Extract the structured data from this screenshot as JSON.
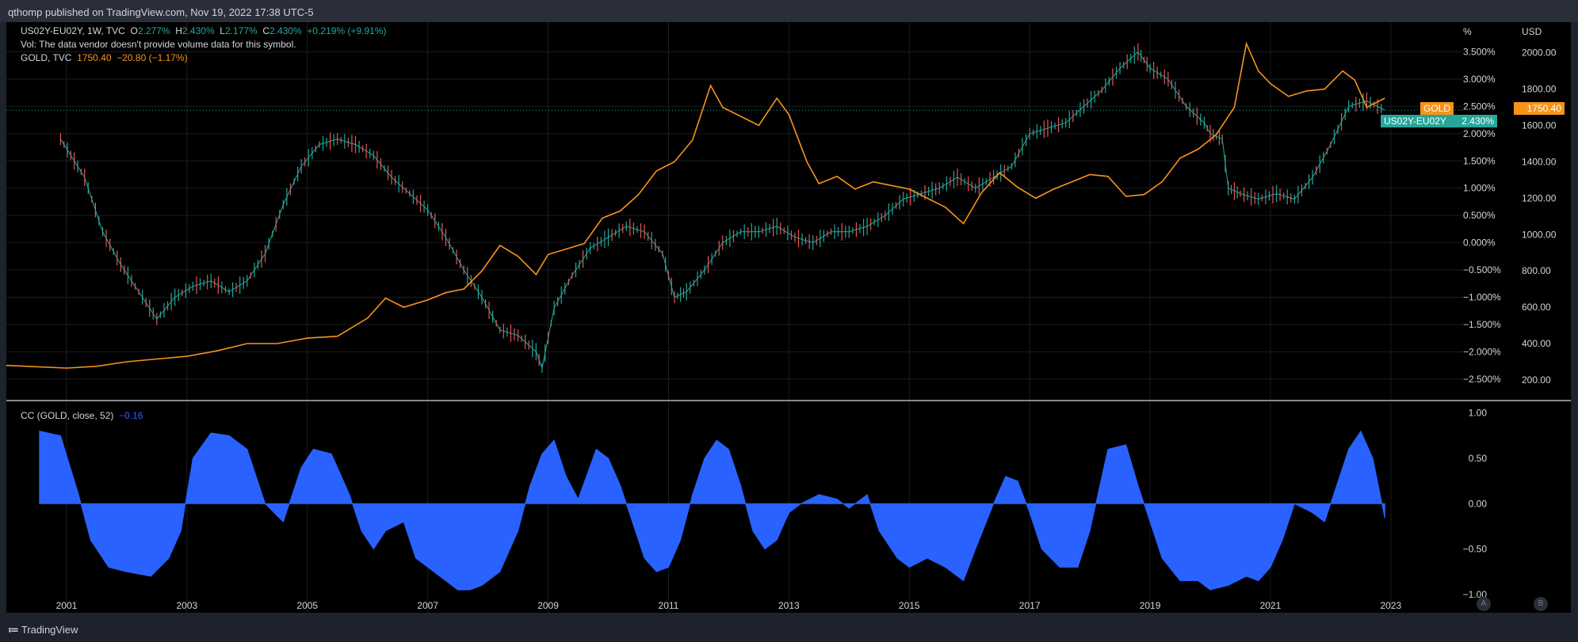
{
  "header": {
    "published_text": "qthomp published on TradingView.com, Nov 19, 2022 17:38 UTC-5"
  },
  "legend": {
    "symbol": "US02Y-EU02Y, 1W, TVC",
    "open_label": "O",
    "open_value": "2.277%",
    "high_label": "H",
    "high_value": "2.430%",
    "low_label": "L",
    "low_value": "2.177%",
    "close_label": "C",
    "close_value": "2.430%",
    "change": "+0.219% (+9.91%)",
    "vol_text": "Vol: The data vendor doesn't provide volume data for this symbol.",
    "gold_symbol": "GOLD, TVC",
    "gold_price": "1750.40",
    "gold_change": "−20.80 (−1.17%)"
  },
  "indicator": {
    "label": "CC (GOLD, close, 52)",
    "value": "−0.16"
  },
  "axes": {
    "left_unit": "%",
    "right_unit": "USD",
    "pct_ticks": [
      "3.500%",
      "3.000%",
      "2.500%",
      "2.000%",
      "1.500%",
      "1.000%",
      "0.500%",
      "0.000%",
      "−0.500%",
      "−1.000%",
      "−1.500%",
      "−2.000%",
      "−2.500%"
    ],
    "usd_ticks": [
      "2000.00",
      "1800.00",
      "1600.00",
      "1400.00",
      "1200.00",
      "1000.00",
      "800.00",
      "600.00",
      "400.00",
      "200.00"
    ],
    "cc_ticks": [
      "1.00",
      "0.50",
      "0.00",
      "−0.50",
      "−1.00"
    ],
    "x_ticks": [
      "2001",
      "2003",
      "2005",
      "2007",
      "2009",
      "2011",
      "2013",
      "2015",
      "2017",
      "2019",
      "2021",
      "2023"
    ]
  },
  "badges": {
    "gold_name": "GOLD",
    "gold_price": "1750.40",
    "spread_name": "US02Y-EU02Y",
    "spread_value": "2.430%"
  },
  "footer": {
    "logo_text": "TradingView",
    "btn_a": "A",
    "btn_b": "B"
  },
  "colors": {
    "gold": "#f7931a",
    "up": "#26a69a",
    "down": "#ef5350",
    "cc": "#2962ff",
    "grid": "#1a1d24",
    "divider": "#b2b5be"
  },
  "chart_data": [
    {
      "type": "line",
      "title": "US02Y-EU02Y, 1W, TVC",
      "series": [
        {
          "name": "US02Y-EU02Y",
          "x": [
            2000.9,
            2001.3,
            2001.6,
            2001.9,
            2002.2,
            2002.5,
            2002.8,
            2003.1,
            2003.4,
            2003.7,
            2004.0,
            2004.3,
            2004.6,
            2004.9,
            2005.2,
            2005.5,
            2005.8,
            2006.1,
            2006.4,
            2006.7,
            2007.0,
            2007.3,
            2007.6,
            2007.9,
            2008.2,
            2008.5,
            2008.8,
            2008.9,
            2009.1,
            2009.4,
            2009.7,
            2010.0,
            2010.3,
            2010.6,
            2010.9,
            2011.1,
            2011.3,
            2011.6,
            2011.9,
            2012.2,
            2012.5,
            2012.8,
            2013.1,
            2013.4,
            2013.7,
            2014.0,
            2014.3,
            2014.6,
            2014.9,
            2015.2,
            2015.5,
            2015.8,
            2016.1,
            2016.4,
            2016.7,
            2017.0,
            2017.3,
            2017.6,
            2017.9,
            2018.2,
            2018.5,
            2018.8,
            2019.0,
            2019.3,
            2019.6,
            2019.9,
            2020.0,
            2020.2,
            2020.3,
            2020.5,
            2020.8,
            2021.1,
            2021.4,
            2021.7,
            2022.0,
            2022.3,
            2022.6,
            2022.9
          ],
          "y": [
            1.9,
            1.2,
            0.2,
            -0.4,
            -0.9,
            -1.4,
            -1.0,
            -0.8,
            -0.7,
            -0.9,
            -0.7,
            -0.2,
            0.7,
            1.4,
            1.8,
            1.9,
            1.8,
            1.6,
            1.2,
            0.9,
            0.6,
            0.1,
            -0.5,
            -1.0,
            -1.6,
            -1.7,
            -2.0,
            -2.3,
            -1.2,
            -0.6,
            -0.1,
            0.1,
            0.3,
            0.2,
            -0.2,
            -1.0,
            -0.9,
            -0.5,
            0.0,
            0.2,
            0.2,
            0.3,
            0.1,
            0.0,
            0.2,
            0.2,
            0.3,
            0.5,
            0.8,
            0.9,
            1.0,
            1.2,
            1.0,
            1.2,
            1.4,
            2.0,
            2.1,
            2.2,
            2.5,
            2.8,
            3.2,
            3.5,
            3.2,
            3.0,
            2.5,
            2.2,
            2.0,
            1.9,
            1.0,
            0.9,
            0.8,
            0.9,
            0.8,
            1.2,
            1.8,
            2.5,
            2.6,
            2.43
          ]
        },
        {
          "name": "GOLD",
          "x": [
            2000.0,
            2001.0,
            2001.5,
            2002.0,
            2002.5,
            2003.0,
            2003.5,
            2004.0,
            2004.5,
            2005.0,
            2005.5,
            2006.0,
            2006.3,
            2006.6,
            2007.0,
            2007.3,
            2007.6,
            2007.9,
            2008.2,
            2008.5,
            2008.8,
            2009.0,
            2009.3,
            2009.6,
            2009.9,
            2010.2,
            2010.5,
            2010.8,
            2011.1,
            2011.4,
            2011.7,
            2011.9,
            2012.2,
            2012.5,
            2012.8,
            2013.0,
            2013.3,
            2013.5,
            2013.8,
            2014.1,
            2014.4,
            2014.7,
            2015.0,
            2015.3,
            2015.6,
            2015.9,
            2016.2,
            2016.5,
            2016.8,
            2017.1,
            2017.4,
            2017.7,
            2018.0,
            2018.3,
            2018.6,
            2018.9,
            2019.2,
            2019.5,
            2019.8,
            2020.1,
            2020.4,
            2020.6,
            2020.8,
            2021.0,
            2021.3,
            2021.6,
            2021.9,
            2022.2,
            2022.4,
            2022.6,
            2022.9
          ],
          "y": [
            280,
            265,
            275,
            300,
            315,
            330,
            360,
            400,
            400,
            430,
            440,
            540,
            650,
            600,
            640,
            680,
            700,
            800,
            940,
            880,
            780,
            890,
            920,
            950,
            1090,
            1130,
            1220,
            1350,
            1400,
            1520,
            1820,
            1700,
            1650,
            1600,
            1750,
            1660,
            1400,
            1280,
            1320,
            1250,
            1290,
            1270,
            1250,
            1200,
            1150,
            1060,
            1230,
            1340,
            1260,
            1200,
            1250,
            1290,
            1330,
            1320,
            1210,
            1220,
            1290,
            1420,
            1470,
            1550,
            1700,
            2050,
            1900,
            1830,
            1760,
            1790,
            1800,
            1900,
            1850,
            1700,
            1750.4
          ]
        }
      ],
      "y_left_range": [
        -2.75,
        3.9
      ],
      "y_right_range": [
        130,
        2125
      ],
      "x_range": [
        2000.0,
        2024.2
      ],
      "grid": true
    },
    {
      "type": "area",
      "title": "CC (GOLD, close, 52)",
      "series": [
        {
          "name": "CC (GOLD, close, 52)",
          "x": [
            2000.55,
            2000.9,
            2001.2,
            2001.4,
            2001.7,
            2002.0,
            2002.4,
            2002.7,
            2002.9,
            2003.1,
            2003.4,
            2003.7,
            2004.0,
            2004.3,
            2004.6,
            2004.9,
            2005.1,
            2005.4,
            2005.7,
            2005.9,
            2006.1,
            2006.3,
            2006.6,
            2006.8,
            2007.0,
            2007.2,
            2007.5,
            2007.7,
            2007.9,
            2008.2,
            2008.5,
            2008.7,
            2008.9,
            2009.1,
            2009.3,
            2009.5,
            2009.8,
            2010.0,
            2010.2,
            2010.4,
            2010.6,
            2010.8,
            2011.0,
            2011.2,
            2011.4,
            2011.6,
            2011.8,
            2012.0,
            2012.2,
            2012.4,
            2012.6,
            2012.8,
            2013.0,
            2013.2,
            2013.5,
            2013.8,
            2014.0,
            2014.3,
            2014.5,
            2014.8,
            2015.0,
            2015.3,
            2015.6,
            2015.9,
            2016.1,
            2016.4,
            2016.6,
            2016.8,
            2017.0,
            2017.2,
            2017.5,
            2017.8,
            2018.0,
            2018.3,
            2018.6,
            2018.8,
            2019.0,
            2019.2,
            2019.5,
            2019.8,
            2020.0,
            2020.3,
            2020.6,
            2020.8,
            2021.0,
            2021.2,
            2021.4,
            2021.7,
            2021.9,
            2022.1,
            2022.3,
            2022.5,
            2022.7,
            2022.9
          ],
          "y": [
            0.8,
            0.75,
            0.1,
            -0.4,
            -0.7,
            -0.75,
            -0.8,
            -0.6,
            -0.3,
            0.5,
            0.78,
            0.75,
            0.6,
            0.0,
            -0.2,
            0.4,
            0.6,
            0.55,
            0.1,
            -0.3,
            -0.5,
            -0.3,
            -0.2,
            -0.6,
            -0.7,
            -0.8,
            -0.95,
            -0.95,
            -0.9,
            -0.75,
            -0.3,
            0.2,
            0.55,
            0.7,
            0.3,
            0.05,
            0.6,
            0.5,
            0.2,
            -0.2,
            -0.6,
            -0.75,
            -0.7,
            -0.4,
            0.1,
            0.5,
            0.7,
            0.6,
            0.2,
            -0.3,
            -0.5,
            -0.4,
            -0.1,
            0.0,
            0.1,
            0.05,
            -0.05,
            0.1,
            -0.3,
            -0.6,
            -0.7,
            -0.6,
            -0.7,
            -0.85,
            -0.5,
            0.0,
            0.3,
            0.25,
            -0.1,
            -0.5,
            -0.7,
            -0.7,
            -0.3,
            0.6,
            0.65,
            0.2,
            -0.2,
            -0.6,
            -0.85,
            -0.85,
            -0.95,
            -0.9,
            -0.8,
            -0.85,
            -0.7,
            -0.4,
            0.0,
            -0.1,
            -0.2,
            0.2,
            0.6,
            0.8,
            0.5,
            -0.16
          ]
        }
      ],
      "ylim": [
        -1.15,
        1.05
      ],
      "x_range": [
        2000.0,
        2024.2
      ]
    }
  ]
}
